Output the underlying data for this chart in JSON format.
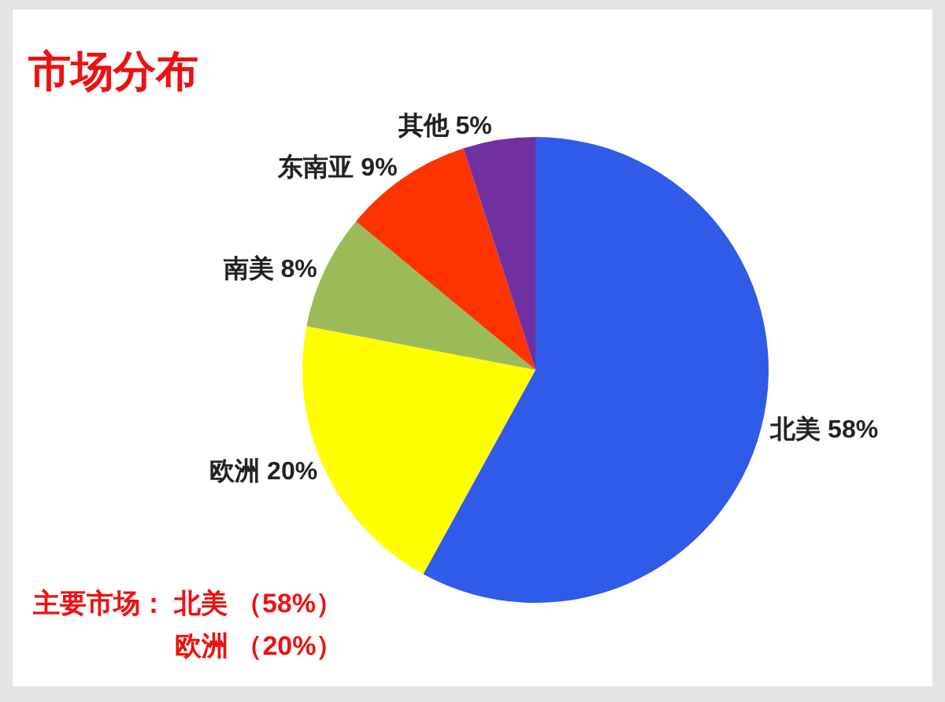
{
  "chart_data": {
    "type": "pie",
    "title": "市场分布",
    "categories": [
      "北美",
      "欧洲",
      "南美",
      "东南亚",
      "其他"
    ],
    "values": [
      58,
      20,
      8,
      9,
      5
    ],
    "colors": [
      "#2f5be8",
      "#ffff00",
      "#9bbb59",
      "#ff3300",
      "#7030a0"
    ],
    "value_labels": [
      "58%",
      "20%",
      "8%",
      "9%",
      "5%"
    ],
    "legend": false,
    "annotations": [
      "主要市场： 北美 （58%）",
      "欧洲 （20%）"
    ]
  }
}
